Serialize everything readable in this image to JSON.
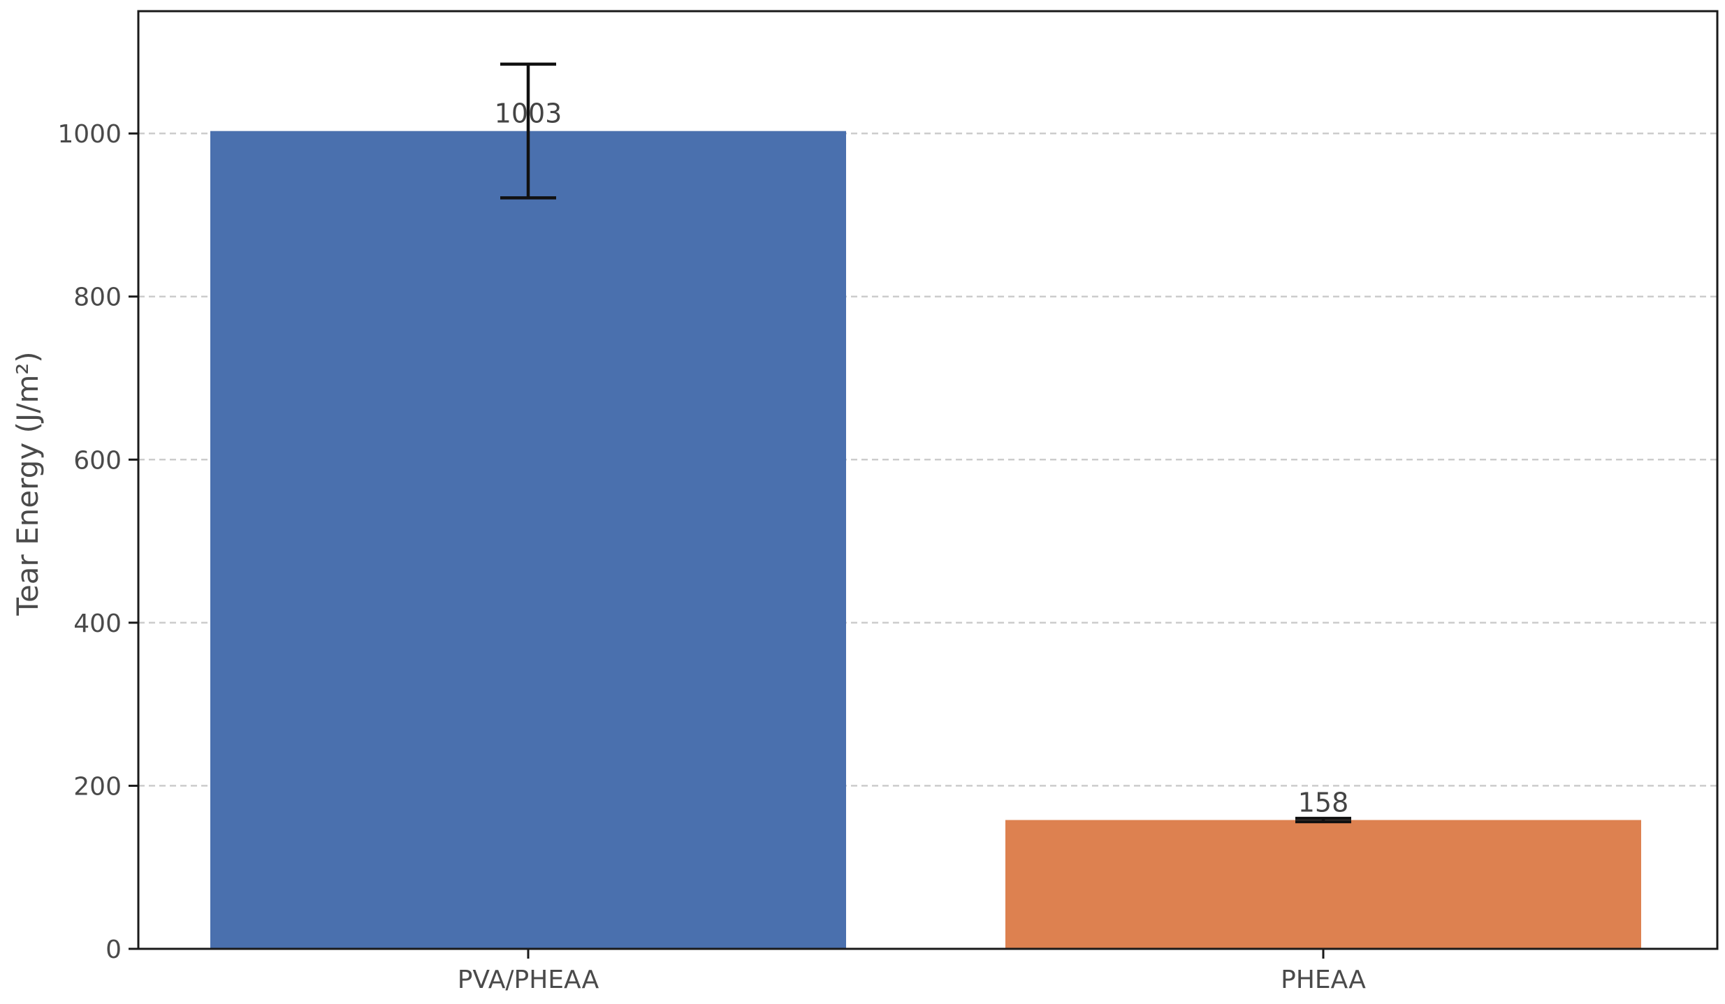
{
  "chart_data": {
    "type": "bar",
    "categories": [
      "PVA/PHEAA",
      "PHEAA"
    ],
    "values": [
      1003,
      158
    ],
    "errors": [
      82,
      2
    ],
    "data_labels": [
      "1003",
      "158"
    ],
    "colors": [
      "#4a70ae",
      "#dd8150"
    ],
    "title": "",
    "xlabel": "",
    "ylabel": "Tear Energy (J/m²)",
    "ylim": [
      0,
      1150
    ],
    "yticks": [
      0,
      200,
      400,
      600,
      800,
      1000
    ],
    "ytick_labels": [
      "0",
      "200",
      "400",
      "600",
      "800",
      "1000"
    ],
    "grid": "horizontal dashed",
    "legend": "none"
  }
}
